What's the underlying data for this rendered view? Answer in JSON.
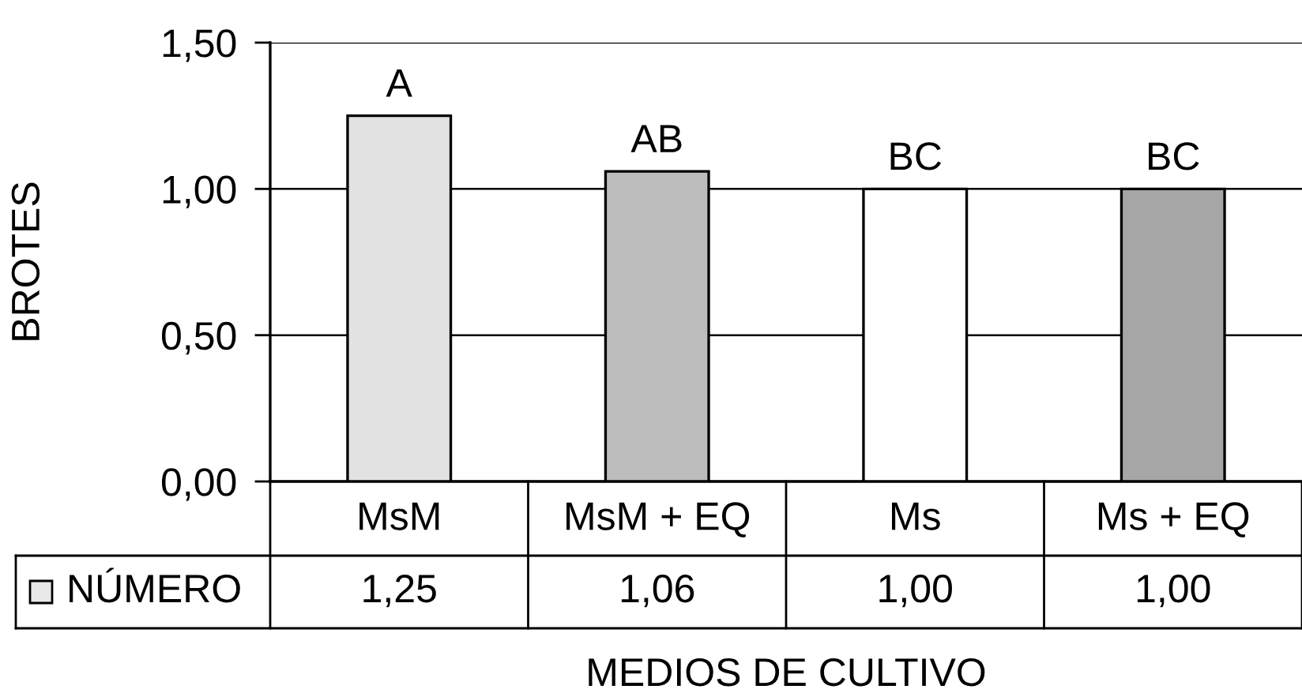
{
  "chart_data": {
    "type": "bar",
    "ylabel": "BROTES",
    "xlabel": "MEDIOS DE CULTIVO",
    "categories": [
      "MsM",
      "MsM + EQ",
      "Ms",
      "Ms + EQ"
    ],
    "series": [
      {
        "name": "NÚMERO",
        "color": "#e8e8e8",
        "colors": [
          "#e2e2e2",
          "#bdbdbd",
          "#ffffff",
          "#a6a6a6"
        ],
        "values": [
          1.25,
          1.06,
          1.0,
          1.0
        ],
        "value_labels": [
          "1,25",
          "1,06",
          "1,00",
          "1,00"
        ]
      }
    ],
    "ylim": [
      0,
      1.5
    ],
    "yticks": [
      {
        "value": 0,
        "label": "0,00"
      },
      {
        "value": 0.5,
        "label": "0,50"
      },
      {
        "value": 1.0,
        "label": "1,00"
      },
      {
        "value": 1.5,
        "label": "1,50"
      }
    ],
    "grid": "y",
    "legend": "bottom left",
    "annotations": [
      {
        "text": "A",
        "x": "MsM",
        "y": 1.25
      },
      {
        "text": "AB",
        "x": "MsM + EQ",
        "y": 1.06
      },
      {
        "text": "BC",
        "x": "Ms",
        "y": 1.0
      },
      {
        "text": "BC",
        "x": "Ms + EQ",
        "y": 1.0
      }
    ]
  }
}
